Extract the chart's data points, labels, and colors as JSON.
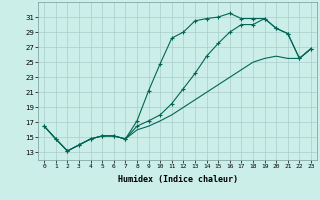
{
  "xlabel": "Humidex (Indice chaleur)",
  "bg_color": "#cceee8",
  "grid_color": "#aacccc",
  "line_color": "#006655",
  "xlim": [
    -0.5,
    23.5
  ],
  "ylim": [
    12.0,
    33.0
  ],
  "xticks": [
    0,
    1,
    2,
    3,
    4,
    5,
    6,
    7,
    8,
    9,
    10,
    11,
    12,
    13,
    14,
    15,
    16,
    17,
    18,
    19,
    20,
    21,
    22,
    23
  ],
  "yticks": [
    13,
    15,
    17,
    19,
    21,
    23,
    25,
    27,
    29,
    31
  ],
  "line1_x": [
    0,
    1,
    2,
    3,
    4,
    5,
    6,
    7,
    8,
    9,
    10,
    11,
    12,
    13,
    14,
    15,
    16,
    17,
    18,
    19,
    20,
    21,
    22,
    23
  ],
  "line1_y": [
    16.5,
    14.8,
    13.2,
    14.0,
    14.8,
    15.2,
    15.2,
    14.8,
    17.2,
    21.2,
    24.8,
    28.2,
    29.0,
    30.5,
    30.8,
    31.0,
    31.5,
    30.8,
    30.8,
    30.8,
    29.5,
    28.8,
    25.5,
    26.8
  ],
  "line2_x": [
    0,
    1,
    2,
    3,
    4,
    5,
    6,
    7,
    8,
    9,
    10,
    11,
    12,
    13,
    14,
    15,
    16,
    17,
    18,
    19,
    20,
    21,
    22,
    23
  ],
  "line2_y": [
    16.5,
    14.8,
    13.2,
    14.0,
    14.8,
    15.2,
    15.2,
    14.8,
    16.5,
    17.2,
    18.0,
    19.5,
    21.5,
    23.5,
    25.8,
    27.5,
    29.0,
    30.0,
    30.0,
    30.8,
    29.5,
    28.8,
    25.5,
    26.8
  ],
  "line3_x": [
    0,
    1,
    2,
    3,
    4,
    5,
    6,
    7,
    8,
    9,
    10,
    11,
    12,
    13,
    14,
    15,
    16,
    17,
    18,
    19,
    20,
    21,
    22,
    23
  ],
  "line3_y": [
    16.5,
    14.8,
    13.2,
    14.0,
    14.8,
    15.2,
    15.2,
    14.8,
    16.0,
    16.5,
    17.2,
    18.0,
    19.0,
    20.0,
    21.0,
    22.0,
    23.0,
    24.0,
    25.0,
    25.5,
    25.8,
    25.5,
    25.5,
    26.8
  ]
}
